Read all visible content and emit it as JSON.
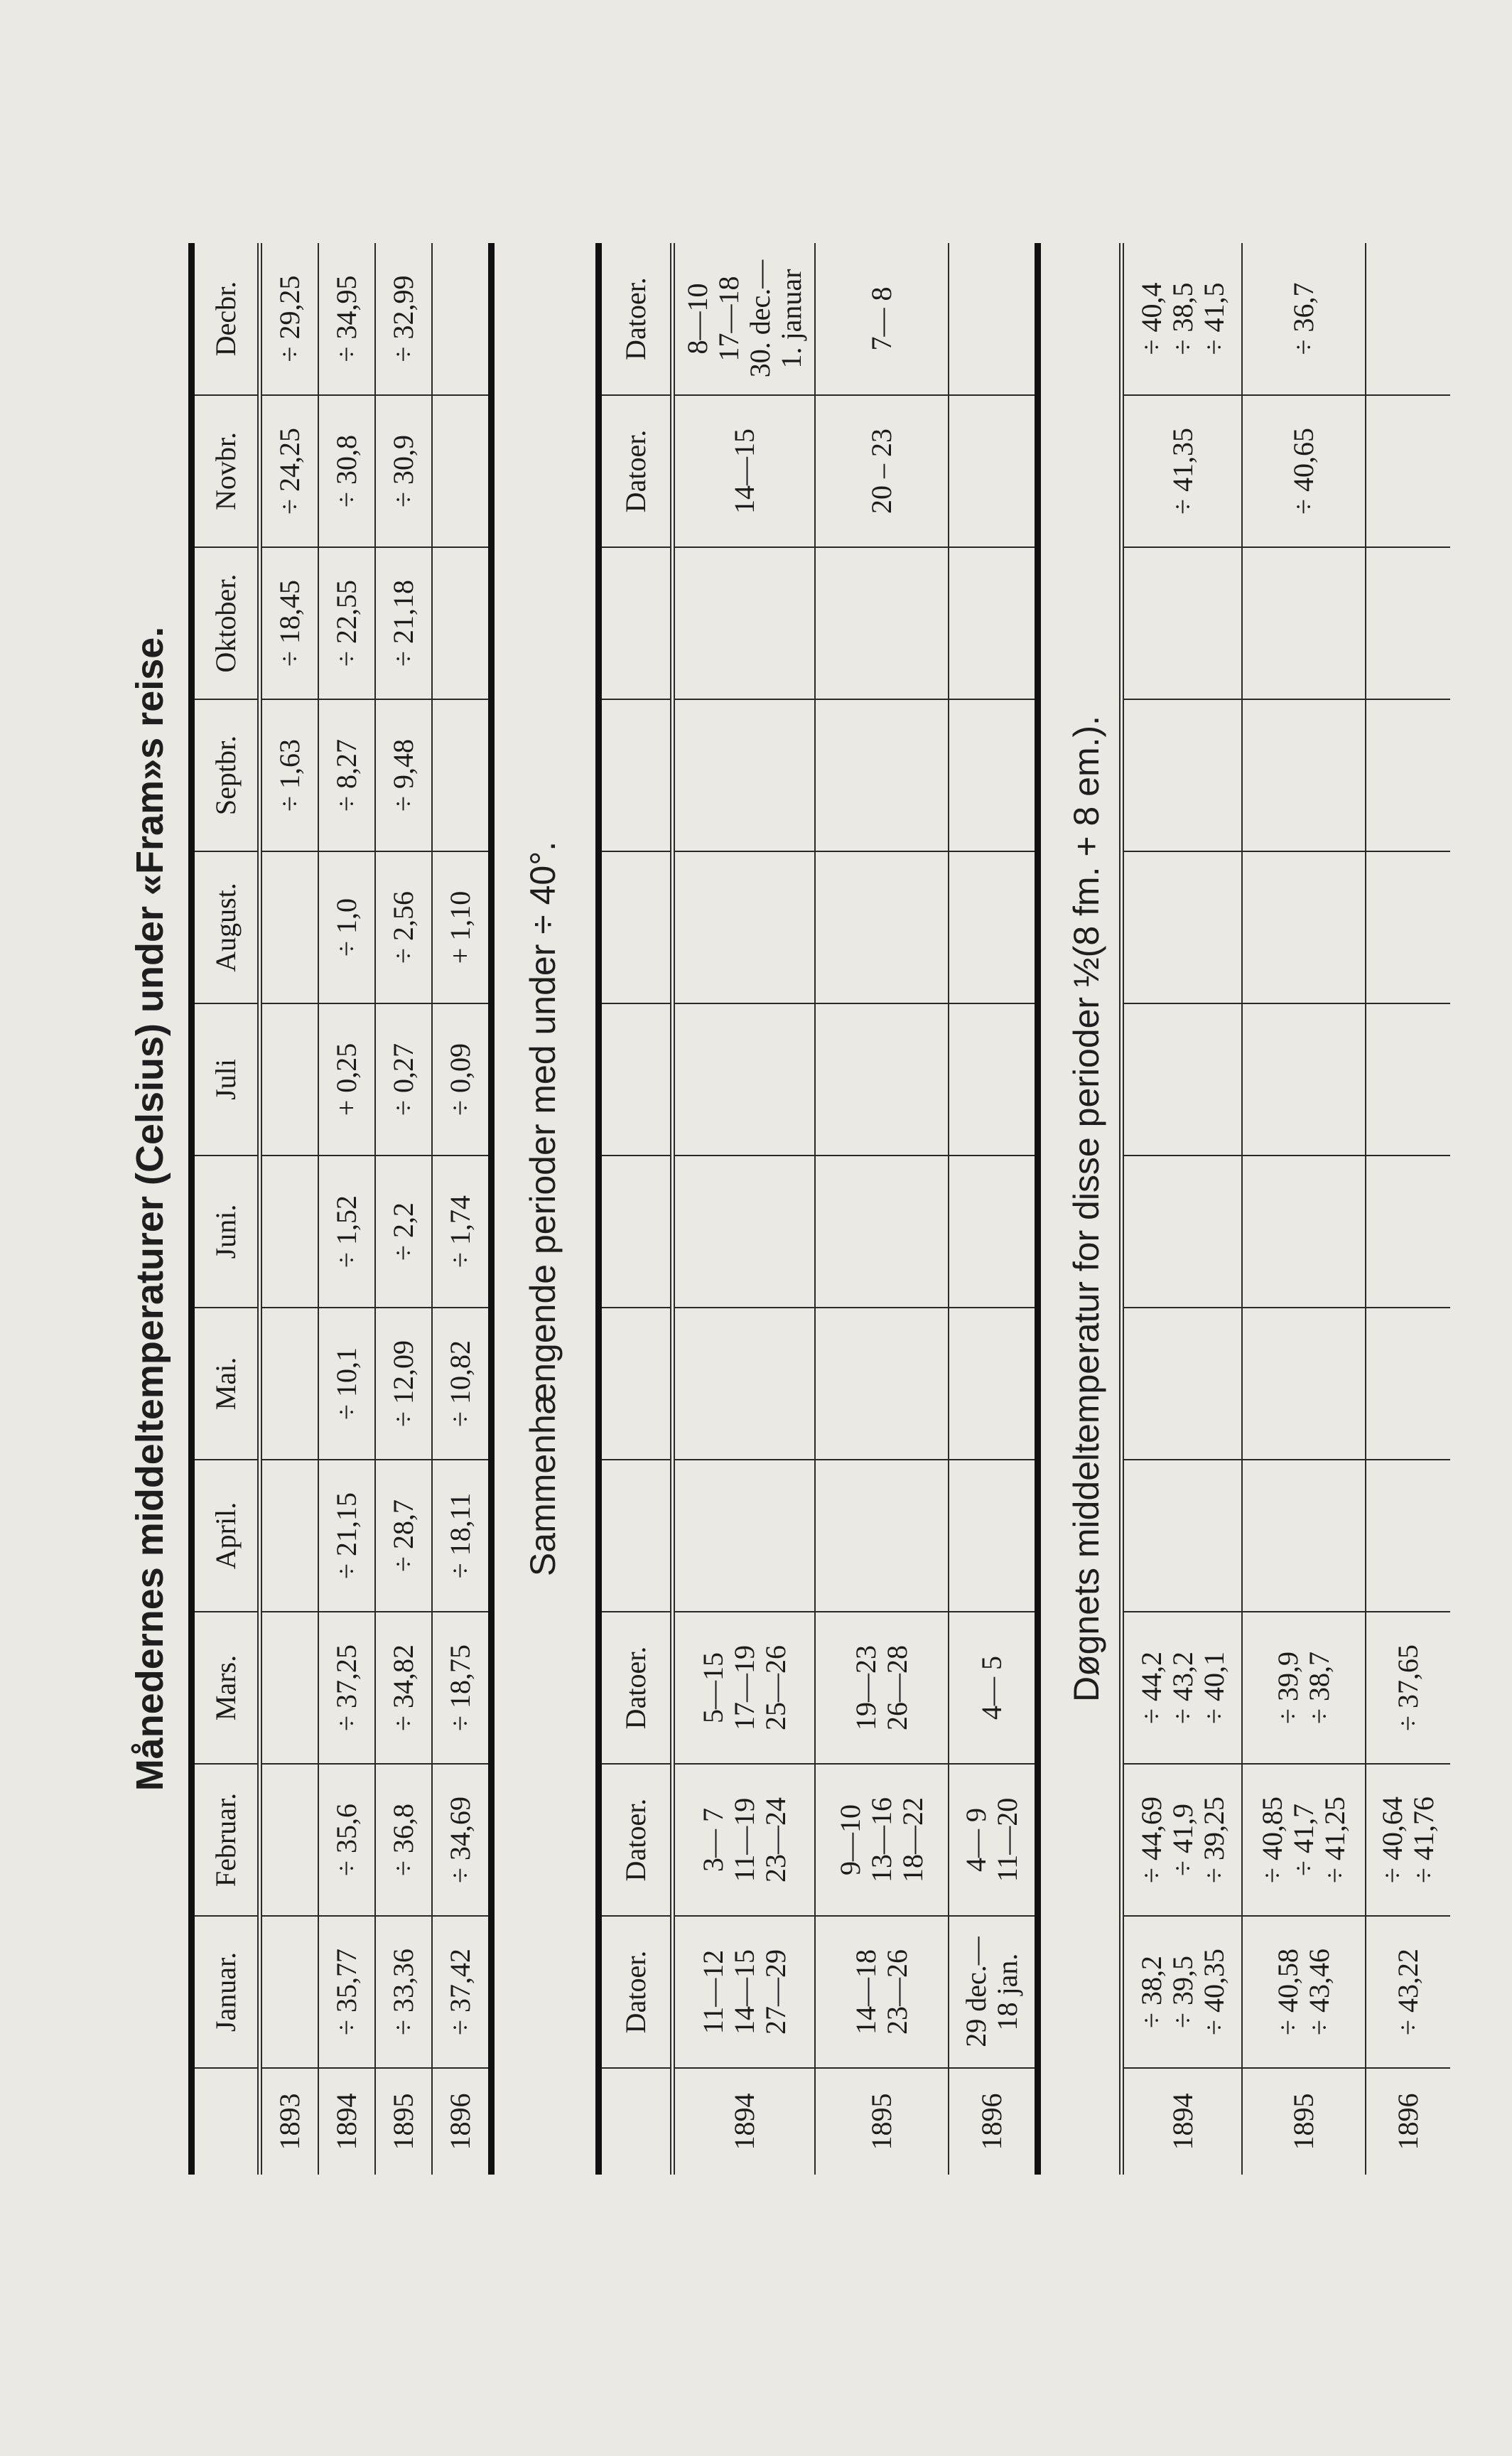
{
  "monthly": {
    "title": "Månedernes middeltemperaturer (Celsius) under «Fram»s reise.",
    "headers": [
      "",
      "Januar.",
      "Februar.",
      "Mars.",
      "April.",
      "Mai.",
      "Juni.",
      "Juli",
      "August.",
      "Septbr.",
      "Oktober.",
      "Novbr.",
      "Decbr."
    ],
    "rows": [
      {
        "year": "1893",
        "values": [
          "",
          "",
          "",
          "",
          "",
          "",
          "",
          "",
          "÷ 1,63",
          "÷ 18,45",
          "÷ 24,25",
          "÷ 29,25"
        ]
      },
      {
        "year": "1894",
        "values": [
          "÷ 35,77",
          "÷ 35,6",
          "÷ 37,25",
          "÷ 21,15",
          "÷ 10,1",
          "÷ 1,52",
          "+ 0,25",
          "÷ 1,0",
          "÷ 8,27",
          "÷ 22,55",
          "÷ 30,8",
          "÷ 34,95"
        ]
      },
      {
        "year": "1895",
        "values": [
          "÷ 33,36",
          "÷ 36,8",
          "÷ 34,82",
          "÷ 28,7",
          "÷ 12,09",
          "÷ 2,2",
          "÷ 0,27",
          "÷ 2,56",
          "÷ 9,48",
          "÷ 21,18",
          "÷ 30,9",
          "÷ 32,99"
        ]
      },
      {
        "year": "1896",
        "values": [
          "÷ 37,42",
          "÷ 34,69",
          "÷ 18,75",
          "÷ 18,11",
          "÷ 10,82",
          "÷ 1,74",
          "÷ 0,09",
          "+ 1,10",
          "",
          "",
          "",
          ""
        ]
      }
    ]
  },
  "periods": {
    "title": "Sammenhængende perioder med under ÷ 40°.",
    "headers": [
      "",
      "Datoer.",
      "Datoer.",
      "Datoer.",
      "",
      "",
      "",
      "",
      "",
      "",
      "",
      "Datoer.",
      "Datoer."
    ],
    "rows": [
      {
        "year": "1894",
        "cells": [
          [
            "11—12",
            "14—15",
            "27—29"
          ],
          [
            "3— 7",
            "11—19",
            "23—24"
          ],
          [
            "5—15",
            "17—19",
            "25—26"
          ],
          [],
          [],
          [],
          [],
          [],
          [],
          [],
          [
            "14—15"
          ],
          [
            "8—10",
            "17—18",
            "30. dec.—",
            "1. januar"
          ]
        ]
      },
      {
        "year": "1895",
        "cells": [
          [
            "14—18",
            "23—26"
          ],
          [
            "9—10",
            "13—16",
            "18—22"
          ],
          [
            "19—23",
            "26—28"
          ],
          [],
          [],
          [],
          [],
          [],
          [],
          [],
          [
            "20 – 23"
          ],
          [
            "7— 8"
          ]
        ]
      },
      {
        "year": "1896",
        "cells": [
          [
            "29 dec.—",
            "18 jan."
          ],
          [
            "4— 9",
            "11—20"
          ],
          [
            "4— 5"
          ],
          [],
          [],
          [],
          [],
          [],
          [],
          [],
          [],
          []
        ]
      }
    ]
  },
  "daily_means": {
    "title": "Døgnets middeltemperatur for disse perioder ½(8 fm. + 8 em.).",
    "rows": [
      {
        "year": "1894",
        "cells": [
          [
            "÷ 38,2",
            "÷ 39,5",
            "÷ 40,35"
          ],
          [
            "÷ 44,69",
            "÷ 41,9",
            "÷ 39,25"
          ],
          [
            "÷ 44,2",
            "÷ 43,2",
            "÷ 40,1"
          ],
          [],
          [],
          [],
          [],
          [],
          [],
          [],
          [
            "÷ 41,35"
          ],
          [
            "÷ 40,4",
            "÷ 38,5",
            "÷ 41,5"
          ]
        ]
      },
      {
        "year": "1895",
        "cells": [
          [
            "÷ 40,58",
            "÷ 43,46"
          ],
          [
            "÷ 40,85",
            "÷ 41,7",
            "÷ 41,25"
          ],
          [
            "÷ 39,9",
            "÷ 38,7"
          ],
          [],
          [],
          [],
          [],
          [],
          [],
          [],
          [
            "÷ 40,65"
          ],
          [
            "÷ 36,7"
          ]
        ]
      },
      {
        "year": "1896",
        "cells": [
          [
            "÷ 43,22"
          ],
          [
            "÷ 40,64",
            "÷ 41,76"
          ],
          [
            "÷ 37,65"
          ],
          [],
          [],
          [],
          [],
          [],
          [],
          [],
          [],
          []
        ]
      }
    ]
  }
}
